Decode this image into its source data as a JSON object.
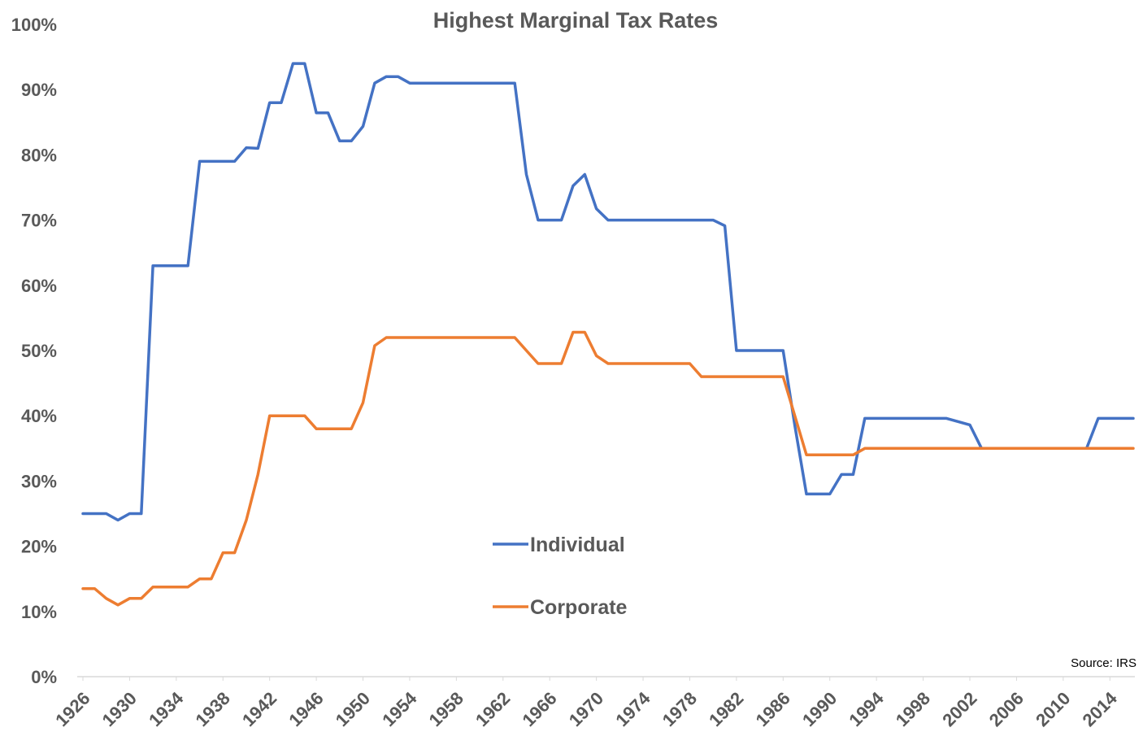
{
  "chart_data": {
    "type": "line",
    "title": "Highest Marginal Tax Rates",
    "xlabel": "",
    "ylabel": "",
    "xlim": [
      1926,
      2016
    ],
    "ylim": [
      0,
      100
    ],
    "y_ticks": [
      "0%",
      "10%",
      "20%",
      "30%",
      "40%",
      "50%",
      "60%",
      "70%",
      "80%",
      "90%",
      "100%"
    ],
    "x_ticks": [
      "1926",
      "1930",
      "1934",
      "1938",
      "1942",
      "1946",
      "1950",
      "1954",
      "1958",
      "1962",
      "1966",
      "1970",
      "1974",
      "1978",
      "1982",
      "1986",
      "1990",
      "1994",
      "1998",
      "2002",
      "2006",
      "2010",
      "2014"
    ],
    "legend_position": "center",
    "grid": false,
    "source": "Source: IRS",
    "x": [
      1926,
      1927,
      1928,
      1929,
      1930,
      1931,
      1932,
      1933,
      1934,
      1935,
      1936,
      1937,
      1938,
      1939,
      1940,
      1941,
      1942,
      1943,
      1944,
      1945,
      1946,
      1947,
      1948,
      1949,
      1950,
      1951,
      1952,
      1953,
      1954,
      1955,
      1956,
      1957,
      1958,
      1959,
      1960,
      1961,
      1962,
      1963,
      1964,
      1965,
      1966,
      1967,
      1968,
      1969,
      1970,
      1971,
      1972,
      1973,
      1974,
      1975,
      1976,
      1977,
      1978,
      1979,
      1980,
      1981,
      1982,
      1983,
      1984,
      1985,
      1986,
      1987,
      1988,
      1989,
      1990,
      1991,
      1992,
      1993,
      1994,
      1995,
      1996,
      1997,
      1998,
      1999,
      2000,
      2001,
      2002,
      2003,
      2004,
      2005,
      2006,
      2007,
      2008,
      2009,
      2010,
      2011,
      2012,
      2013,
      2014,
      2015,
      2016
    ],
    "series": [
      {
        "name": "Individual",
        "color": "#4472C4",
        "values": [
          25,
          25,
          25,
          24,
          25,
          25,
          63,
          63,
          63,
          63,
          79,
          79,
          79,
          79,
          81.1,
          81,
          88,
          88,
          94,
          94,
          86.45,
          86.45,
          82.13,
          82.13,
          84.36,
          91,
          92,
          92,
          91,
          91,
          91,
          91,
          91,
          91,
          91,
          91,
          91,
          91,
          77,
          70,
          70,
          70,
          75.25,
          77,
          71.75,
          70,
          70,
          70,
          70,
          70,
          70,
          70,
          70,
          70,
          70,
          69.13,
          50,
          50,
          50,
          50,
          50,
          38.5,
          28,
          28,
          28,
          31,
          31,
          39.6,
          39.6,
          39.6,
          39.6,
          39.6,
          39.6,
          39.6,
          39.6,
          39.1,
          38.6,
          35,
          35,
          35,
          35,
          35,
          35,
          35,
          35,
          35,
          35,
          39.6,
          39.6,
          39.6,
          39.6
        ]
      },
      {
        "name": "Corporate",
        "color": "#ED7D31",
        "values": [
          13.5,
          13.5,
          12,
          11,
          12,
          12,
          13.75,
          13.75,
          13.75,
          13.75,
          15,
          15,
          19,
          19,
          24,
          31,
          40,
          40,
          40,
          40,
          38,
          38,
          38,
          38,
          42,
          50.75,
          52,
          52,
          52,
          52,
          52,
          52,
          52,
          52,
          52,
          52,
          52,
          52,
          50,
          48,
          48,
          48,
          52.8,
          52.8,
          49.2,
          48,
          48,
          48,
          48,
          48,
          48,
          48,
          48,
          46,
          46,
          46,
          46,
          46,
          46,
          46,
          46,
          40,
          34,
          34,
          34,
          34,
          34,
          35,
          35,
          35,
          35,
          35,
          35,
          35,
          35,
          35,
          35,
          35,
          35,
          35,
          35,
          35,
          35,
          35,
          35,
          35,
          35,
          35,
          35,
          35,
          35
        ]
      }
    ]
  }
}
